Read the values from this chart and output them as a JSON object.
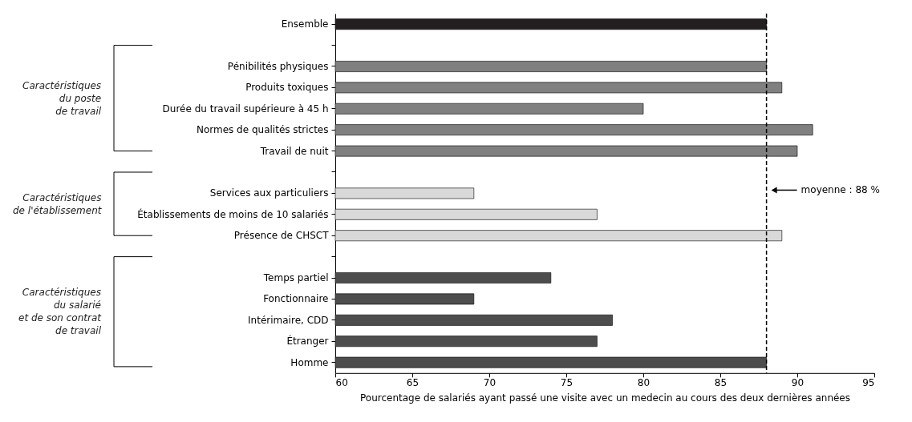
{
  "chart_data": {
    "type": "bar",
    "orientation": "horizontal",
    "categories": [
      "Ensemble",
      null,
      "Pénibilités physiques",
      "Produits toxiques",
      "Durée du travail supérieure à 45 h",
      "Normes de qualités strictes",
      "Travail de nuit",
      null,
      "Services aux particuliers",
      "Établissements de moins de 10 salariés",
      "Présence de CHSCT",
      null,
      "Temps partiel",
      "Fonctionnaire",
      "Intérimaire, CDD",
      "Étranger",
      "Homme"
    ],
    "values": [
      88,
      null,
      88,
      89,
      80,
      91,
      90,
      null,
      69,
      77,
      89,
      null,
      74,
      69,
      78,
      77,
      88
    ],
    "colors": [
      "#231f20",
      "#808080",
      "#808080",
      "#808080",
      "#808080",
      "#808080",
      "#808080",
      "#d9d9d9",
      "#d9d9d9",
      "#d9d9d9",
      "#d9d9d9",
      "#4d4d4d",
      "#4d4d4d",
      "#4d4d4d",
      "#4d4d4d",
      "#4d4d4d",
      "#4d4d4d"
    ],
    "xlim": [
      60,
      95
    ],
    "xticks": [
      60,
      65,
      70,
      75,
      80,
      85,
      90,
      95
    ],
    "xlabel": "Pourcentage de salariés ayant passé une visite avec un medecin au cours des deux dernières années",
    "ref_lines": [
      {
        "axis": "x",
        "value": 88,
        "label": "moyenne : 88 %",
        "line_style": "dashed",
        "color": "#000000"
      }
    ],
    "annotations": [
      "Caractéristiques\ndu poste\nde travail",
      "Caractéristiques\nde l'établissement",
      "Caractéristiques\ndu salarié\net de son contrat\nde travail"
    ],
    "grid": false
  }
}
